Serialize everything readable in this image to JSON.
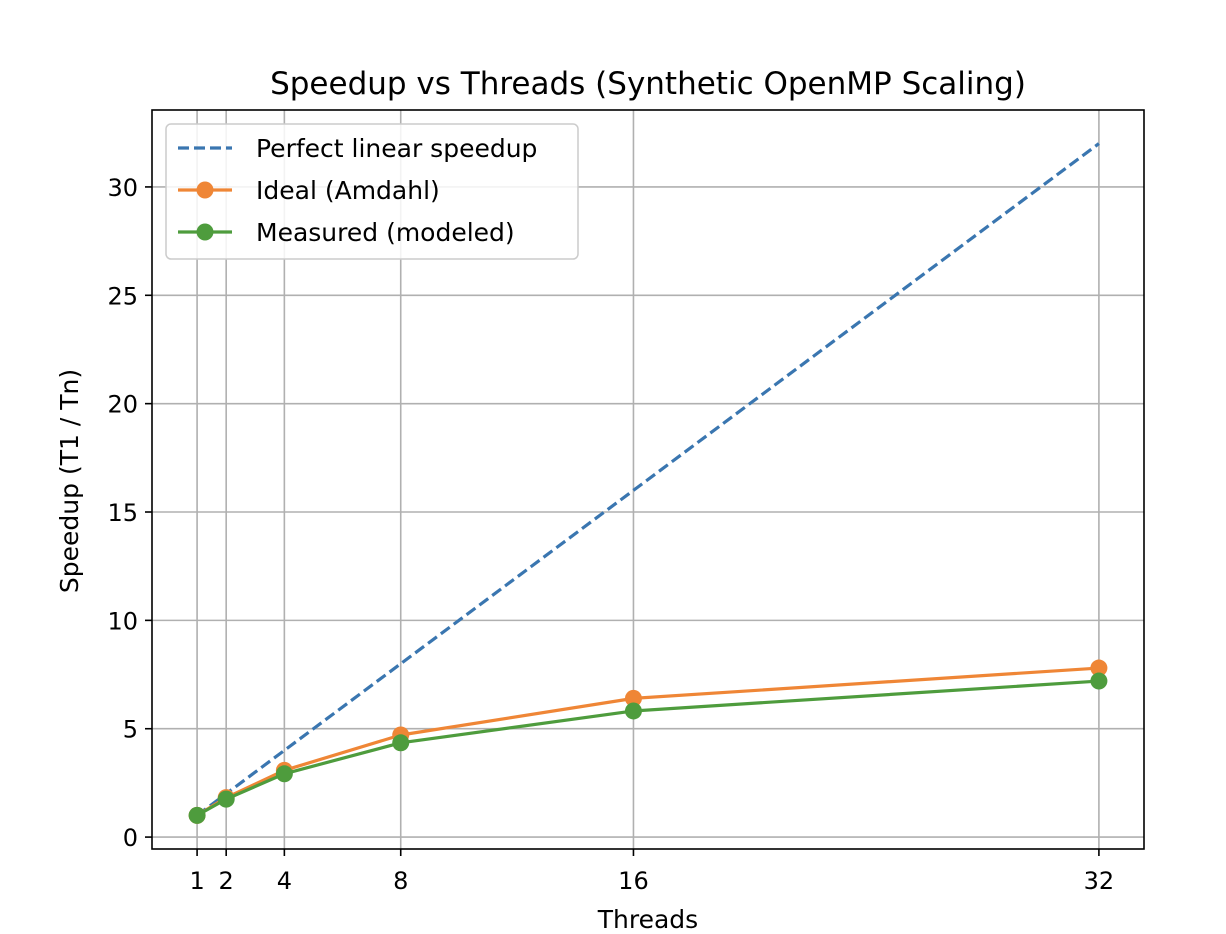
{
  "chart_data": {
    "type": "line",
    "title": "Speedup vs Threads (Synthetic OpenMP Scaling)",
    "xlabel": "Threads",
    "ylabel": "Speedup (T1 / Tn)",
    "x": [
      1,
      2,
      4,
      8,
      16,
      32
    ],
    "x_ticks": [
      1,
      2,
      4,
      8,
      16,
      32
    ],
    "y_ticks": [
      0,
      5,
      10,
      15,
      20,
      25,
      30
    ],
    "xlim": [
      -0.55,
      33.55
    ],
    "ylim": [
      -0.55,
      33.55
    ],
    "grid": true,
    "legend_position": "upper-left",
    "series": [
      {
        "name": "Perfect linear speedup",
        "values": [
          1,
          2,
          4,
          8,
          16,
          32
        ],
        "color": "#3a76b0",
        "style": "dashed",
        "marker": "none"
      },
      {
        "name": "Ideal (Amdahl)",
        "values": [
          1.0,
          1.82,
          3.08,
          4.71,
          6.4,
          7.8
        ],
        "color": "#ef8636",
        "style": "solid",
        "marker": "circle"
      },
      {
        "name": "Measured (modeled)",
        "values": [
          1.0,
          1.75,
          2.92,
          4.35,
          5.82,
          7.2
        ],
        "color": "#4e9c3d",
        "style": "solid",
        "marker": "circle"
      }
    ]
  }
}
